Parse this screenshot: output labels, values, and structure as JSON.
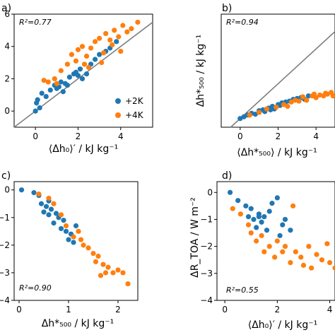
{
  "colors": {
    "plus2k": "#1f77b4",
    "plus4k": "#ff7f0e",
    "one_to_one": "#808080"
  },
  "legend": {
    "entries": [
      {
        "label": "+2K",
        "color": "#1f77b4"
      },
      {
        "label": "+4K",
        "color": "#ff7f0e"
      }
    ]
  },
  "chart_data": [
    {
      "panel": "a)",
      "type": "scatter",
      "annotation": "R²=0.77",
      "ylabel": "",
      "xlabel_display": "⟨Δh₀⟩′ / kJ kg⁻¹",
      "xlim": [
        -1,
        5.5
      ],
      "ylim": [
        -1,
        6
      ],
      "xticks": [
        0,
        2,
        4
      ],
      "yticks": [
        0,
        2,
        4,
        6
      ],
      "one_to_one_line": true,
      "legend_placement": "lower-right",
      "series": [
        {
          "name": "+2K",
          "points": [
            [
              0.1,
              0.7
            ],
            [
              0.2,
              0.2
            ],
            [
              0.05,
              0.5
            ],
            [
              0.3,
              1.1
            ],
            [
              0.5,
              0.9
            ],
            [
              0.7,
              1.3
            ],
            [
              0.9,
              1.6
            ],
            [
              1.0,
              1.4
            ],
            [
              1.2,
              1.8
            ],
            [
              1.3,
              1.2
            ],
            [
              1.5,
              1.6
            ],
            [
              1.6,
              2.1
            ],
            [
              1.8,
              2.3
            ],
            [
              1.9,
              2.4
            ],
            [
              2.1,
              2.6
            ],
            [
              2.2,
              2.0
            ],
            [
              2.4,
              2.3
            ],
            [
              2.6,
              2.9
            ],
            [
              2.8,
              3.2
            ],
            [
              3.0,
              3.5
            ],
            [
              3.3,
              3.7
            ],
            [
              3.5,
              3.9
            ],
            [
              3.8,
              4.3
            ],
            [
              1.1,
              1.5
            ],
            [
              1.4,
              1.7
            ],
            [
              2.0,
              2.2
            ],
            [
              0.0,
              0.0
            ]
          ]
        },
        {
          "name": "+4K",
          "points": [
            [
              0.4,
              1.9
            ],
            [
              0.6,
              1.8
            ],
            [
              0.9,
              2.0
            ],
            [
              1.2,
              2.5
            ],
            [
              1.5,
              2.9
            ],
            [
              1.7,
              3.5
            ],
            [
              1.9,
              3.1
            ],
            [
              2.0,
              3.8
            ],
            [
              2.2,
              4.0
            ],
            [
              2.4,
              3.4
            ],
            [
              2.6,
              3.9
            ],
            [
              2.8,
              4.3
            ],
            [
              3.0,
              4.5
            ],
            [
              3.1,
              3.0
            ],
            [
              3.3,
              4.8
            ],
            [
              3.5,
              4.4
            ],
            [
              3.7,
              5.0
            ],
            [
              3.9,
              4.6
            ],
            [
              4.1,
              5.3
            ],
            [
              4.3,
              4.9
            ],
            [
              4.5,
              5.1
            ],
            [
              4.8,
              5.5
            ],
            [
              2.5,
              2.7
            ],
            [
              3.2,
              3.6
            ],
            [
              1.0,
              1.7
            ],
            [
              2.3,
              2.9
            ],
            [
              3.6,
              4.1
            ],
            [
              4.0,
              3.7
            ]
          ]
        }
      ]
    },
    {
      "panel": "b)",
      "type": "scatter",
      "annotation": "R²=0.94",
      "ylabel_display": "Δh*₅₀₀ / kJ kg⁻¹",
      "xlabel_display": "⟨Δh*₅₀₀⟩ / kJ kg⁻¹",
      "xlim": [
        -1,
        5
      ],
      "ylim": [
        -0.5,
        6
      ],
      "xticks": [
        0,
        2,
        4
      ],
      "yticks": [],
      "one_to_one_line": true,
      "series": [
        {
          "name": "+2K",
          "points": [
            [
              0.0,
              0.0
            ],
            [
              0.2,
              0.1
            ],
            [
              0.4,
              0.2
            ],
            [
              0.6,
              0.3
            ],
            [
              0.8,
              0.25
            ],
            [
              1.0,
              0.45
            ],
            [
              1.2,
              0.5
            ],
            [
              1.3,
              0.4
            ],
            [
              1.5,
              0.6
            ],
            [
              1.7,
              0.7
            ],
            [
              1.8,
              0.55
            ],
            [
              2.0,
              0.8
            ],
            [
              2.2,
              0.9
            ],
            [
              2.4,
              0.95
            ],
            [
              2.6,
              1.0
            ],
            [
              2.8,
              1.1
            ],
            [
              3.0,
              1.15
            ],
            [
              3.2,
              1.2
            ],
            [
              3.4,
              1.1
            ],
            [
              3.6,
              1.3
            ],
            [
              1.6,
              0.5
            ],
            [
              2.1,
              0.75
            ]
          ]
        },
        {
          "name": "+4K",
          "points": [
            [
              0.5,
              0.2
            ],
            [
              1.0,
              0.35
            ],
            [
              1.4,
              0.55
            ],
            [
              1.9,
              0.65
            ],
            [
              2.3,
              0.8
            ],
            [
              2.7,
              0.95
            ],
            [
              3.1,
              1.0
            ],
            [
              3.3,
              1.25
            ],
            [
              3.5,
              1.05
            ],
            [
              3.8,
              1.3
            ],
            [
              4.0,
              1.2
            ],
            [
              4.2,
              1.35
            ],
            [
              4.4,
              1.3
            ],
            [
              4.6,
              1.4
            ],
            [
              4.8,
              1.5
            ],
            [
              4.9,
              1.3
            ],
            [
              2.5,
              0.7
            ],
            [
              3.9,
              1.4
            ],
            [
              4.5,
              1.45
            ],
            [
              2.9,
              1.05
            ]
          ]
        }
      ]
    },
    {
      "panel": "c)",
      "type": "scatter",
      "annotation": "R²=0.90",
      "ylabel": "",
      "xlabel_display": "Δh*₅₀₀ / kJ kg⁻¹",
      "xlim": [
        -0.1,
        2.4
      ],
      "ylim": [
        -4,
        0.3
      ],
      "xticks": [
        0,
        1,
        2
      ],
      "yticks": [
        0,
        -1,
        -2,
        -3,
        -4
      ],
      "series": [
        {
          "name": "+2K",
          "points": [
            [
              0.05,
              0.0
            ],
            [
              0.3,
              -0.1
            ],
            [
              0.4,
              -0.2
            ],
            [
              0.45,
              -0.5
            ],
            [
              0.5,
              -0.8
            ],
            [
              0.55,
              -0.6
            ],
            [
              0.6,
              -0.9
            ],
            [
              0.65,
              -0.7
            ],
            [
              0.7,
              -1.2
            ],
            [
              0.75,
              -0.85
            ],
            [
              0.8,
              -1.0
            ],
            [
              0.85,
              -1.4
            ],
            [
              0.9,
              -1.1
            ],
            [
              0.95,
              -1.5
            ],
            [
              1.0,
              -1.8
            ],
            [
              1.05,
              -1.6
            ],
            [
              1.1,
              -1.9
            ],
            [
              1.15,
              -1.3
            ],
            [
              0.6,
              -0.4
            ]
          ]
        },
        {
          "name": "+4K",
          "points": [
            [
              0.4,
              -0.15
            ],
            [
              0.6,
              -0.3
            ],
            [
              0.7,
              -0.5
            ],
            [
              0.85,
              -0.9
            ],
            [
              0.95,
              -1.3
            ],
            [
              1.1,
              -1.7
            ],
            [
              1.2,
              -1.5
            ],
            [
              1.3,
              -2.0
            ],
            [
              1.4,
              -2.1
            ],
            [
              1.5,
              -2.3
            ],
            [
              1.55,
              -2.6
            ],
            [
              1.6,
              -2.4
            ],
            [
              1.7,
              -2.7
            ],
            [
              1.75,
              -3.0
            ],
            [
              1.8,
              -2.8
            ],
            [
              1.9,
              -3.0
            ],
            [
              2.0,
              -2.9
            ],
            [
              2.1,
              -3.0
            ],
            [
              2.2,
              -3.4
            ],
            [
              1.25,
              -1.8
            ],
            [
              1.65,
              -3.1
            ]
          ]
        }
      ]
    },
    {
      "panel": "d)",
      "type": "scatter",
      "annotation": "R²=0.55",
      "ylabel_display": "ΔR_TOA / W m⁻²",
      "xlabel_display": "⟨Δh₀⟩′ / kJ kg⁻¹",
      "xlim": [
        -0.3,
        4.2
      ],
      "ylim": [
        -4,
        0.4
      ],
      "xticks": [
        0,
        2,
        4
      ],
      "yticks": [
        0,
        -1,
        -2,
        -3,
        -4
      ],
      "series": [
        {
          "name": "+2K",
          "points": [
            [
              0.2,
              0.0
            ],
            [
              0.5,
              -0.3
            ],
            [
              0.8,
              -0.5
            ],
            [
              0.9,
              -0.9
            ],
            [
              1.0,
              -0.6
            ],
            [
              1.1,
              -1.0
            ],
            [
              1.2,
              -1.3
            ],
            [
              1.3,
              -0.8
            ],
            [
              1.4,
              -1.1
            ],
            [
              1.5,
              -0.9
            ],
            [
              1.6,
              -1.4
            ],
            [
              1.7,
              -0.7
            ],
            [
              1.8,
              -0.4
            ],
            [
              2.0,
              -0.2
            ],
            [
              2.1,
              -1.6
            ],
            [
              2.2,
              -1.2
            ],
            [
              2.3,
              -1.0
            ],
            [
              2.5,
              -1.4
            ],
            [
              1.3,
              -0.9
            ]
          ]
        },
        {
          "name": "+4K",
          "points": [
            [
              0.3,
              -0.6
            ],
            [
              0.6,
              -0.8
            ],
            [
              0.9,
              -1.2
            ],
            [
              1.0,
              -1.5
            ],
            [
              1.2,
              -1.8
            ],
            [
              1.4,
              -1.6
            ],
            [
              1.5,
              -2.2
            ],
            [
              1.7,
              -2.0
            ],
            [
              1.9,
              -2.4
            ],
            [
              2.0,
              -1.8
            ],
            [
              2.2,
              -2.2
            ],
            [
              2.3,
              -2.0
            ],
            [
              2.5,
              -2.6
            ],
            [
              2.7,
              -2.2
            ],
            [
              2.9,
              -2.4
            ],
            [
              3.0,
              -2.7
            ],
            [
              3.2,
              -2.0
            ],
            [
              3.3,
              -2.8
            ],
            [
              3.5,
              -2.3
            ],
            [
              3.7,
              -2.5
            ],
            [
              3.9,
              -1.9
            ],
            [
              4.0,
              -2.6
            ],
            [
              4.2,
              -2.8
            ],
            [
              2.6,
              -0.5
            ]
          ]
        }
      ]
    }
  ]
}
